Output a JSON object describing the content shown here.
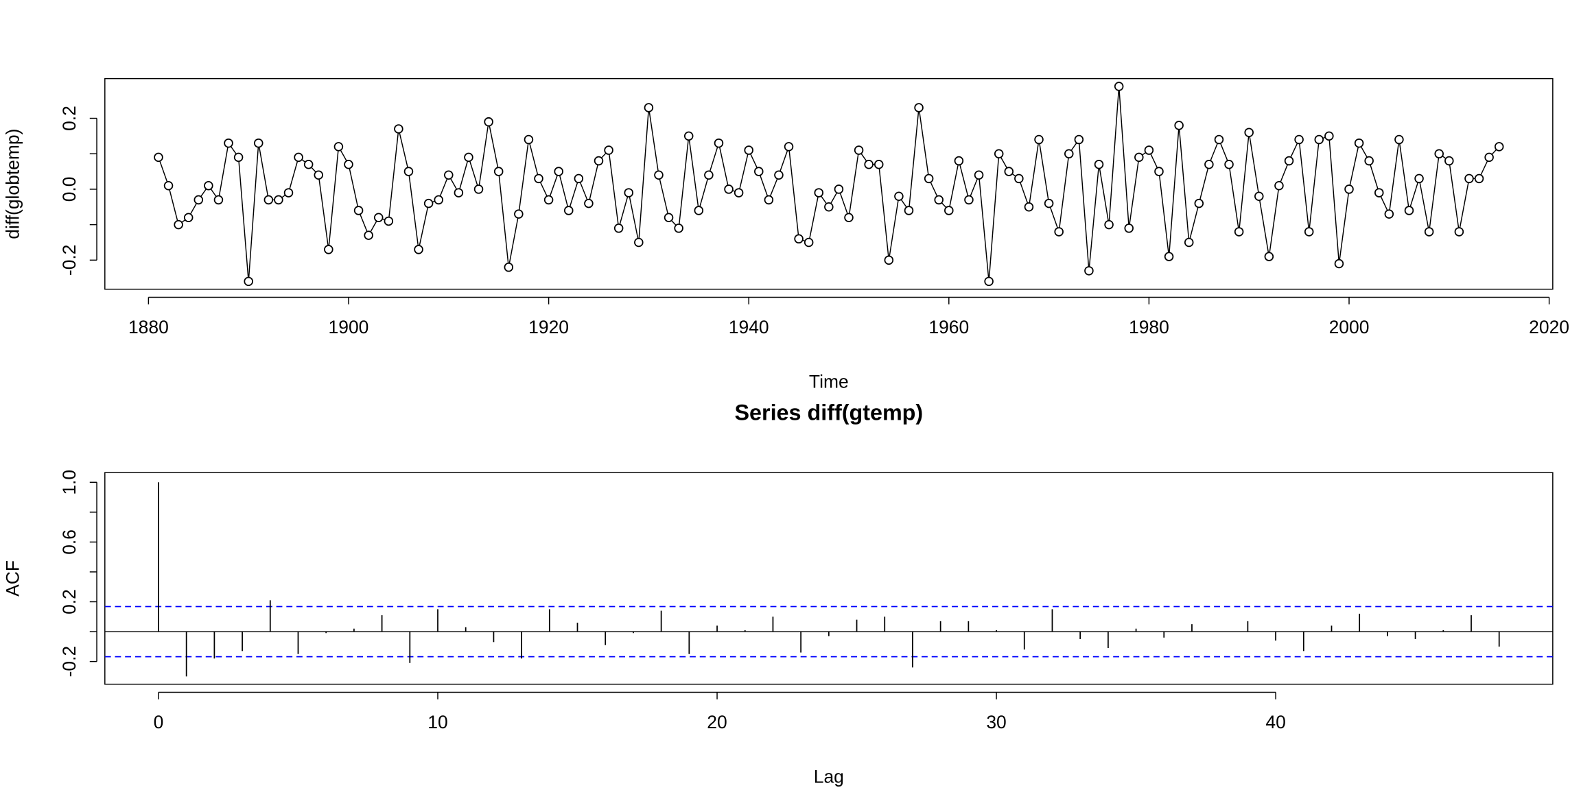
{
  "chart_data": [
    {
      "type": "line",
      "xlabel": "Time",
      "ylabel": "diff(globtemp)",
      "color": "#000000",
      "x": [
        1881,
        1882,
        1883,
        1884,
        1885,
        1886,
        1887,
        1888,
        1889,
        1890,
        1891,
        1892,
        1893,
        1894,
        1895,
        1896,
        1897,
        1898,
        1899,
        1900,
        1901,
        1902,
        1903,
        1904,
        1905,
        1906,
        1907,
        1908,
        1909,
        1910,
        1911,
        1912,
        1913,
        1914,
        1915,
        1916,
        1917,
        1918,
        1919,
        1920,
        1921,
        1922,
        1923,
        1924,
        1925,
        1926,
        1927,
        1928,
        1929,
        1930,
        1931,
        1932,
        1933,
        1934,
        1935,
        1936,
        1937,
        1938,
        1939,
        1940,
        1941,
        1942,
        1943,
        1944,
        1945,
        1946,
        1947,
        1948,
        1949,
        1950,
        1951,
        1952,
        1953,
        1954,
        1955,
        1956,
        1957,
        1958,
        1959,
        1960,
        1961,
        1962,
        1963,
        1964,
        1965,
        1966,
        1967,
        1968,
        1969,
        1970,
        1971,
        1972,
        1973,
        1974,
        1975,
        1976,
        1977,
        1978,
        1979,
        1980,
        1981,
        1982,
        1983,
        1984,
        1985,
        1986,
        1987,
        1988,
        1989,
        1990,
        1991,
        1992,
        1993,
        1994,
        1995,
        1996,
        1997,
        1998,
        1999,
        2000,
        2001,
        2002,
        2003,
        2004,
        2005,
        2006,
        2007,
        2008,
        2009,
        2010,
        2011,
        2012,
        2013,
        2014,
        2015
      ],
      "values": [
        0.09,
        0.01,
        -0.1,
        -0.08,
        -0.03,
        0.01,
        -0.03,
        0.13,
        0.09,
        -0.26,
        0.13,
        -0.03,
        -0.03,
        -0.01,
        0.09,
        0.07,
        0.04,
        -0.17,
        0.12,
        0.07,
        -0.06,
        -0.13,
        -0.08,
        -0.09,
        0.17,
        0.05,
        -0.17,
        -0.04,
        -0.03,
        0.04,
        -0.01,
        0.09,
        0.0,
        0.19,
        0.05,
        -0.22,
        -0.07,
        0.14,
        0.03,
        -0.03,
        0.05,
        -0.06,
        0.03,
        -0.04,
        0.08,
        0.11,
        -0.11,
        -0.01,
        -0.15,
        0.23,
        0.04,
        -0.08,
        -0.11,
        0.15,
        -0.06,
        0.04,
        0.13,
        0.0,
        -0.01,
        0.11,
        0.05,
        -0.03,
        0.04,
        0.12,
        -0.14,
        -0.15,
        -0.01,
        -0.05,
        0.0,
        -0.08,
        0.11,
        0.07,
        0.07,
        -0.2,
        -0.02,
        -0.06,
        0.23,
        0.03,
        -0.03,
        -0.06,
        0.08,
        -0.03,
        0.04,
        -0.26,
        0.1,
        0.05,
        0.03,
        -0.05,
        0.14,
        -0.04,
        -0.12,
        0.1,
        0.14,
        -0.23,
        0.07,
        -0.1,
        0.29,
        -0.11,
        0.09,
        0.11,
        0.05,
        -0.19,
        0.18,
        -0.15,
        -0.04,
        0.07,
        0.14,
        0.07,
        -0.12,
        0.16,
        -0.02,
        -0.19,
        0.01,
        0.08,
        0.14,
        -0.12,
        0.14,
        0.15,
        -0.21,
        0.0,
        0.13,
        0.08,
        -0.01,
        -0.07,
        0.14,
        -0.06,
        0.03,
        -0.12,
        0.1,
        0.08,
        -0.12,
        0.03,
        0.03,
        0.09,
        0.12
      ],
      "xlim": [
        1875.64,
        2020.36
      ],
      "xticks": [
        1880,
        1900,
        1920,
        1940,
        1960,
        1980,
        2000,
        2020
      ],
      "ylim": [
        -0.282,
        0.312
      ],
      "yticks": [
        {
          "value": -0.2,
          "label": "-0.2"
        },
        {
          "value": -0.1,
          "label": null
        },
        {
          "value": 0,
          "label": "0.0"
        },
        {
          "value": 0.1,
          "label": null
        },
        {
          "value": 0.2,
          "label": "0.2"
        }
      ]
    },
    {
      "type": "stem",
      "title": "Series  diff(gtemp)",
      "xlabel": "Lag",
      "ylabel": "ACF",
      "color": "#000000",
      "x": [
        0,
        1,
        2,
        3,
        4,
        5,
        6,
        7,
        8,
        9,
        10,
        11,
        12,
        13,
        14,
        15,
        16,
        17,
        18,
        19,
        20,
        21,
        22,
        23,
        24,
        25,
        26,
        27,
        28,
        29,
        30,
        31,
        32,
        33,
        34,
        35,
        36,
        37,
        38,
        39,
        40,
        41,
        42,
        43,
        44,
        45,
        46,
        47,
        48
      ],
      "values": [
        1.0,
        -0.3,
        -0.18,
        -0.13,
        0.21,
        -0.15,
        -0.01,
        0.02,
        0.11,
        -0.21,
        0.15,
        0.03,
        -0.07,
        -0.18,
        0.15,
        0.06,
        -0.09,
        -0.01,
        0.14,
        -0.15,
        0.04,
        0.01,
        0.1,
        -0.14,
        -0.03,
        0.08,
        0.1,
        -0.24,
        0.07,
        0.07,
        0.01,
        -0.12,
        0.15,
        -0.05,
        -0.11,
        0.02,
        -0.04,
        0.05,
        0.0,
        0.07,
        -0.06,
        -0.13,
        0.04,
        0.12,
        -0.03,
        -0.05,
        0.01,
        0.11,
        -0.1
      ],
      "conf_limits": [
        -0.168,
        0.168
      ],
      "conf_color": "#0000ff",
      "xlim": [
        -1.92,
        49.92
      ],
      "xticks": [
        0,
        10,
        20,
        30,
        40
      ],
      "ylim": [
        -0.352,
        1.065
      ],
      "yticks": [
        {
          "value": -0.2,
          "label": "-0.2"
        },
        {
          "value": 0,
          "label": null
        },
        {
          "value": 0.2,
          "label": "0.2"
        },
        {
          "value": 0.4,
          "label": null
        },
        {
          "value": 0.6,
          "label": "0.6"
        },
        {
          "value": 0.8,
          "label": null
        },
        {
          "value": 1.0,
          "label": "1.0"
        }
      ]
    }
  ]
}
